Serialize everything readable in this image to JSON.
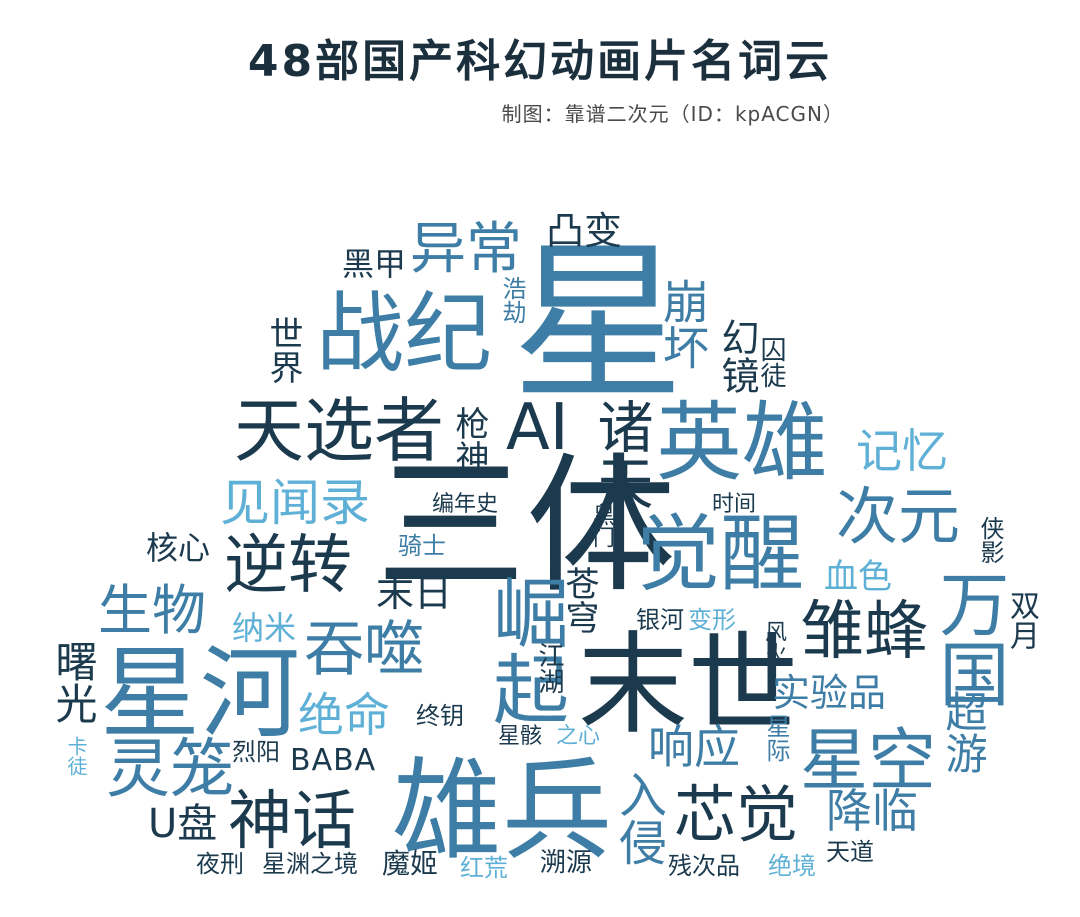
{
  "title": "48部国产科幻动画片名词云",
  "credit": "制图：靠谱二次元（ID：kpACGN）",
  "colors": {
    "dark": "#1c3a4e",
    "mid": "#3e7ea6",
    "light": "#5fb0d6",
    "title": "#1b2f3d"
  },
  "words": {
    "xing": "星",
    "santi": "三体",
    "zhanji": "战纪",
    "yichang": "异常",
    "tuba": "凸变",
    "heijia": "黑甲",
    "haojie": "浩劫",
    "shijie": "世界",
    "bengfai": "崩坏",
    "huanjing": "幻镜",
    "qiutu": "囚徒",
    "tianxuanzhe": "天选者",
    "ai": "AI",
    "zhutian": "诸天",
    "qiangshen": "枪神",
    "yingxiong": "英雄",
    "jiyi": "记忆",
    "jianwenlu": "见闻录",
    "biannianshi": "编年史",
    "shijian": "时间",
    "ciyuan": "次元",
    "hexin": "核心",
    "nizhuan": "逆转",
    "qishi": "骑士",
    "heimen": "黑门",
    "juexing": "觉醒",
    "xiaying": "侠影",
    "shengwu": "生物",
    "mori": "末日",
    "cangqiong": "苍穹",
    "xuese": "血色",
    "nami": "纳米",
    "tunshi": "吞噬",
    "jueqi": "崛起",
    "yinhe": "银河",
    "bianxing": "变形",
    "fenghuo": "风火",
    "wanguo": "万国",
    "shuangyue": "双月",
    "zhifeng": "雏蜂",
    "shuguang": "曙光",
    "xinghe": "星河",
    "jianghu": "江湖",
    "moshi": "末世",
    "shiyanpin": "实验品",
    "chaoyou": "超游",
    "jueming": "绝命",
    "zhongyao": "终钥",
    "xianyin": "响应",
    "xinghai": "星骸",
    "zhixin": "之心",
    "xingji": "星际",
    "katu": "卡徒",
    "lieyang": "烈阳",
    "baba": "BABA",
    "lingl": "灵笼",
    "xiongbing": "雄兵",
    "xingkong": "星空",
    "rinqin": "入侵",
    "xinjue": "芯觉",
    "jianglin": "降临",
    "upan": "U盘",
    "shenhua": "神话",
    "yexing": "夜刑",
    "xingyuanzhijing": "星渊之境",
    "moji": "魔姬",
    "honghuang": "红荒",
    "suyuan": "溯源",
    "cancipin": "残次品",
    "jingjing": "绝境",
    "tiandao": "天道"
  }
}
